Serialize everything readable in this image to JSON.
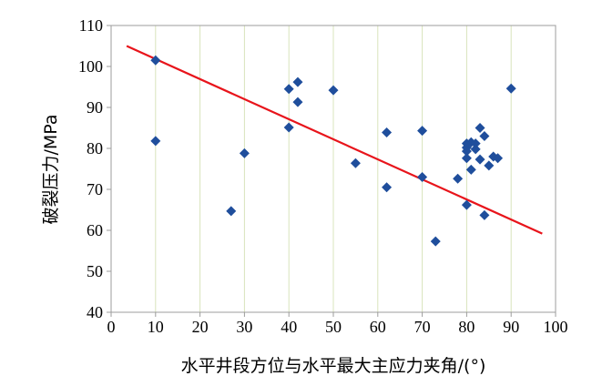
{
  "chart_data": {
    "type": "scatter",
    "xlabel": "水平井段方位与水平最大主应力夹角/(°)",
    "ylabel": "破裂压力/MPa",
    "xlim": [
      0,
      100
    ],
    "ylim": [
      40,
      110
    ],
    "x_ticks": [
      "0",
      "10",
      "20",
      "30",
      "40",
      "50",
      "60",
      "70",
      "80",
      "90",
      "100"
    ],
    "y_ticks": [
      "40",
      "50",
      "60",
      "70",
      "80",
      "90",
      "100",
      "110"
    ],
    "grid": "vertical",
    "marker_color": "#1f4e9c",
    "trend_color": "#e8141b",
    "trendline": {
      "x": [
        3.5,
        97
      ],
      "y": [
        105,
        59.2
      ]
    },
    "points": [
      {
        "x": 10,
        "y": 101.5
      },
      {
        "x": 10,
        "y": 81.8
      },
      {
        "x": 27,
        "y": 64.7
      },
      {
        "x": 30,
        "y": 78.8
      },
      {
        "x": 40,
        "y": 94.5
      },
      {
        "x": 40,
        "y": 85.1
      },
      {
        "x": 42,
        "y": 96.2
      },
      {
        "x": 42,
        "y": 91.3
      },
      {
        "x": 50,
        "y": 94.2
      },
      {
        "x": 55,
        "y": 76.4
      },
      {
        "x": 62,
        "y": 83.9
      },
      {
        "x": 62,
        "y": 70.5
      },
      {
        "x": 70,
        "y": 84.3
      },
      {
        "x": 70,
        "y": 73.0
      },
      {
        "x": 73,
        "y": 57.3
      },
      {
        "x": 78,
        "y": 72.6
      },
      {
        "x": 80,
        "y": 81.2
      },
      {
        "x": 80,
        "y": 80.2
      },
      {
        "x": 80,
        "y": 79.3
      },
      {
        "x": 80,
        "y": 77.6
      },
      {
        "x": 80,
        "y": 66.2
      },
      {
        "x": 81,
        "y": 81.5
      },
      {
        "x": 81,
        "y": 74.8
      },
      {
        "x": 82,
        "y": 81.2
      },
      {
        "x": 82,
        "y": 79.8
      },
      {
        "x": 83,
        "y": 85.0
      },
      {
        "x": 83,
        "y": 77.3
      },
      {
        "x": 84,
        "y": 83.0
      },
      {
        "x": 84,
        "y": 63.7
      },
      {
        "x": 85,
        "y": 75.8
      },
      {
        "x": 86,
        "y": 78.0
      },
      {
        "x": 87,
        "y": 77.6
      },
      {
        "x": 90,
        "y": 94.6
      }
    ]
  }
}
